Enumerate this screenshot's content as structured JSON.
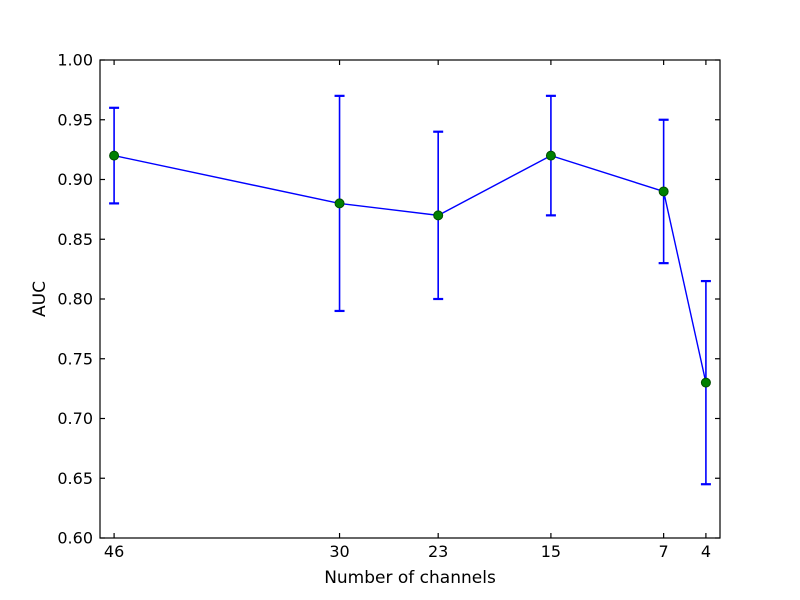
{
  "figure": {
    "background_color": "#ffffff"
  },
  "chart_data": {
    "type": "line",
    "title": "",
    "xlabel": "Number of channels",
    "ylabel": "AUC",
    "x": [
      46,
      30,
      23,
      15,
      7,
      4
    ],
    "y": [
      0.92,
      0.88,
      0.87,
      0.92,
      0.89,
      0.73
    ],
    "yerr": [
      0.04,
      0.09,
      0.07,
      0.05,
      0.06,
      0.085
    ],
    "xticks": [
      46,
      30,
      23,
      15,
      7,
      4
    ],
    "xtick_labels": [
      "46",
      "30",
      "23",
      "15",
      "7",
      "4"
    ],
    "yticks": [
      0.6,
      0.65,
      0.7,
      0.75,
      0.8,
      0.85,
      0.9,
      0.95,
      1.0
    ],
    "ytick_labels": [
      "0.60",
      "0.65",
      "0.70",
      "0.75",
      "0.80",
      "0.85",
      "0.90",
      "0.95",
      "1.00"
    ],
    "xlim": [
      47,
      3
    ],
    "x_axis_reversed": true,
    "ylim": [
      0.6,
      1.0
    ],
    "grid": false,
    "legend": null,
    "line_color": "#0000ff",
    "errorbar_color": "#0000ff",
    "marker_color": "#008000",
    "marker_edge_color": "#004d00",
    "axis_color": "#000000"
  }
}
